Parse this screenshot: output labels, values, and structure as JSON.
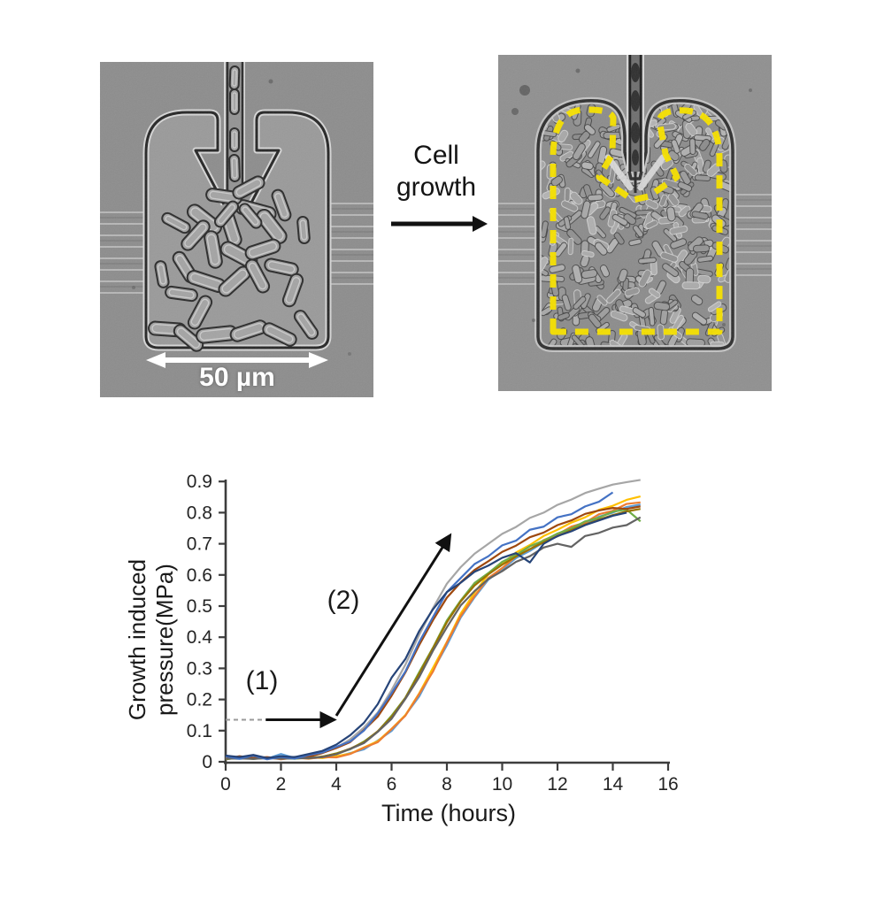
{
  "figure": {
    "transition_label": "Cell growth",
    "left_panel": {
      "scale_bar_label": "50 µm"
    },
    "colors": {
      "background_gray": "#8f8f8f",
      "highlight_outline_yellow": "#F5E003",
      "scale_bar_white": "#ffffff",
      "annotation_black": "#141414"
    }
  },
  "chart_data": {
    "type": "line",
    "title": "",
    "xlabel": "Time (hours)",
    "ylabel_line1": "Growth induced",
    "ylabel_line2": "pressure(MPa)",
    "xlim": [
      0,
      16
    ],
    "ylim": [
      0,
      0.9
    ],
    "grid": false,
    "legend": "none",
    "x_ticks": [
      0,
      2,
      4,
      6,
      8,
      10,
      12,
      14,
      16
    ],
    "y_ticks": [
      "0",
      "0.1",
      "0.2",
      "0.3",
      "0.4",
      "0.5",
      "0.6",
      "0.7",
      "0.8",
      "0.9"
    ],
    "annotations": [
      {
        "label": "(1)",
        "x": 1.3,
        "y": 0.25
      },
      {
        "label": "(2)",
        "x": 4.25,
        "y": 0.51
      }
    ],
    "arrows": [
      {
        "style": "dashed",
        "x1": 0,
        "y1": 0.135,
        "x2": 1.45,
        "y2": 0.135
      },
      {
        "style": "arrow",
        "x1": 1.45,
        "y1": 0.135,
        "x2": 3.9,
        "y2": 0.135
      },
      {
        "style": "arrow",
        "x1": 4.0,
        "y1": 0.148,
        "x2": 8.1,
        "y2": 0.725
      }
    ],
    "x_start": 0,
    "x_step": 0.5,
    "series": [
      {
        "name": "gray",
        "color": "#A6A6A6",
        "values": [
          0.012,
          0.013,
          0.012,
          0.014,
          0.01,
          0.016,
          0.015,
          0.03,
          0.045,
          0.072,
          0.11,
          0.158,
          0.23,
          0.312,
          0.408,
          0.494,
          0.572,
          0.625,
          0.668,
          0.7,
          0.732,
          0.754,
          0.783,
          0.8,
          0.825,
          0.842,
          0.863,
          0.877,
          0.89,
          0.898,
          0.905
        ]
      },
      {
        "name": "light-blue",
        "color": "#5B9BD5",
        "values": [
          0.012,
          0.009,
          0.014,
          0.01,
          0.025,
          0.012,
          0.011,
          0.014,
          0.016,
          0.028,
          0.04,
          0.068,
          0.099,
          0.15,
          0.21,
          0.294,
          0.374,
          0.463,
          0.528,
          0.585,
          0.618,
          0.654,
          0.677,
          0.705,
          0.724,
          0.747,
          0.763,
          0.787,
          0.8,
          0.818,
          0.826
        ]
      },
      {
        "name": "gold",
        "color": "#FFC000",
        "values": [
          0.01,
          0.012,
          0.011,
          0.013,
          0.012,
          0.01,
          0.014,
          0.012,
          0.018,
          0.026,
          0.046,
          0.066,
          0.106,
          0.15,
          0.22,
          0.302,
          0.385,
          0.476,
          0.543,
          0.602,
          0.636,
          0.672,
          0.696,
          0.725,
          0.745,
          0.768,
          0.785,
          0.809,
          0.822,
          0.841,
          0.852
        ]
      },
      {
        "name": "orange",
        "color": "#ED7D31",
        "values": [
          0.008,
          0.014,
          0.01,
          0.014,
          0.008,
          0.013,
          0.01,
          0.015,
          0.014,
          0.025,
          0.045,
          0.063,
          0.105,
          0.148,
          0.218,
          0.29,
          0.383,
          0.468,
          0.532,
          0.59,
          0.622,
          0.66,
          0.682,
          0.712,
          0.73,
          0.755,
          0.768,
          0.795,
          0.806,
          0.828,
          0.833
        ]
      },
      {
        "name": "green",
        "color": "#70AD47",
        "values": [
          0.008,
          0.013,
          0.009,
          0.013,
          0.011,
          0.01,
          0.013,
          0.016,
          0.027,
          0.04,
          0.065,
          0.097,
          0.148,
          0.206,
          0.288,
          0.367,
          0.454,
          0.518,
          0.574,
          0.606,
          0.642,
          0.664,
          0.692,
          0.71,
          0.733,
          0.749,
          0.772,
          0.784,
          0.803,
          0.81,
          0.772
        ]
      },
      {
        "name": "olive",
        "color": "#997300",
        "values": [
          0.009,
          0.012,
          0.01,
          0.012,
          0.011,
          0.013,
          0.011,
          0.017,
          0.026,
          0.042,
          0.063,
          0.098,
          0.144,
          0.205,
          0.283,
          0.365,
          0.448,
          0.515,
          0.566,
          0.602,
          0.633,
          0.659,
          0.683,
          0.705,
          0.724,
          0.744,
          0.762,
          0.778,
          0.792,
          0.804,
          0.812
        ]
      },
      {
        "name": "brown",
        "color": "#9E480E",
        "values": [
          0.01,
          0.018,
          0.012,
          0.015,
          0.01,
          0.014,
          0.016,
          0.028,
          0.044,
          0.063,
          0.102,
          0.145,
          0.212,
          0.287,
          0.375,
          0.455,
          0.527,
          0.576,
          0.616,
          0.644,
          0.674,
          0.694,
          0.721,
          0.736,
          0.76,
          0.775,
          0.796,
          0.807,
          0.815,
          0.812,
          0.82
        ]
      },
      {
        "name": "dark-gray",
        "color": "#636363",
        "values": [
          0.01,
          0.011,
          0.009,
          0.012,
          0.01,
          0.011,
          0.012,
          0.015,
          0.024,
          0.041,
          0.06,
          0.096,
          0.138,
          0.202,
          0.272,
          0.357,
          0.432,
          0.502,
          0.548,
          0.587,
          0.612,
          0.642,
          0.66,
          0.688,
          0.7,
          0.69,
          0.725,
          0.735,
          0.752,
          0.76,
          0.785
        ]
      },
      {
        "name": "blue",
        "color": "#4472C4",
        "values": [
          0.018,
          0.01,
          0.02,
          0.008,
          0.016,
          0.01,
          0.022,
          0.03,
          0.048,
          0.065,
          0.1,
          0.155,
          0.22,
          0.29,
          0.385,
          0.465,
          0.545,
          0.59,
          0.635,
          0.66,
          0.695,
          0.71,
          0.745,
          0.755,
          0.785,
          0.795,
          0.82,
          0.835,
          0.865
        ]
      },
      {
        "name": "navy",
        "color": "#264478",
        "values": [
          0.02,
          0.015,
          0.022,
          0.012,
          0.018,
          0.015,
          0.025,
          0.035,
          0.055,
          0.085,
          0.125,
          0.185,
          0.27,
          0.33,
          0.42,
          0.49,
          0.545,
          0.575,
          0.61,
          0.63,
          0.655,
          0.67,
          0.64,
          0.7,
          0.725,
          0.74,
          0.76,
          0.775,
          0.79,
          0.8
        ]
      }
    ]
  }
}
